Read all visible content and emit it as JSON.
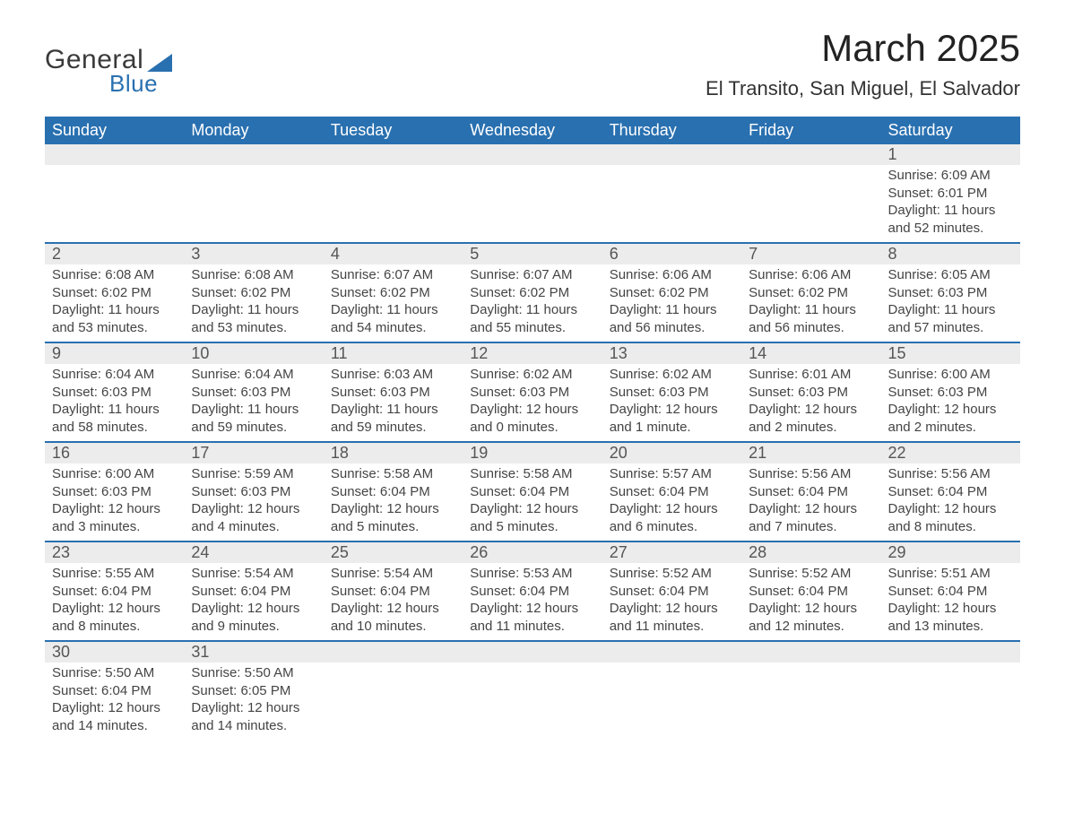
{
  "logo": {
    "general": "General",
    "blue": "Blue"
  },
  "title": "March 2025",
  "subtitle": "El Transito, San Miguel, El Salvador",
  "calendar": {
    "header_bg": "#2970b0",
    "header_fg": "#ffffff",
    "daynum_bg": "#ececec",
    "row_border": "#2970b0",
    "weekdays": [
      "Sunday",
      "Monday",
      "Tuesday",
      "Wednesday",
      "Thursday",
      "Friday",
      "Saturday"
    ],
    "weeks": [
      [
        null,
        null,
        null,
        null,
        null,
        null,
        {
          "n": "1",
          "sunrise": "Sunrise: 6:09 AM",
          "sunset": "Sunset: 6:01 PM",
          "day1": "Daylight: 11 hours",
          "day2": "and 52 minutes."
        }
      ],
      [
        {
          "n": "2",
          "sunrise": "Sunrise: 6:08 AM",
          "sunset": "Sunset: 6:02 PM",
          "day1": "Daylight: 11 hours",
          "day2": "and 53 minutes."
        },
        {
          "n": "3",
          "sunrise": "Sunrise: 6:08 AM",
          "sunset": "Sunset: 6:02 PM",
          "day1": "Daylight: 11 hours",
          "day2": "and 53 minutes."
        },
        {
          "n": "4",
          "sunrise": "Sunrise: 6:07 AM",
          "sunset": "Sunset: 6:02 PM",
          "day1": "Daylight: 11 hours",
          "day2": "and 54 minutes."
        },
        {
          "n": "5",
          "sunrise": "Sunrise: 6:07 AM",
          "sunset": "Sunset: 6:02 PM",
          "day1": "Daylight: 11 hours",
          "day2": "and 55 minutes."
        },
        {
          "n": "6",
          "sunrise": "Sunrise: 6:06 AM",
          "sunset": "Sunset: 6:02 PM",
          "day1": "Daylight: 11 hours",
          "day2": "and 56 minutes."
        },
        {
          "n": "7",
          "sunrise": "Sunrise: 6:06 AM",
          "sunset": "Sunset: 6:02 PM",
          "day1": "Daylight: 11 hours",
          "day2": "and 56 minutes."
        },
        {
          "n": "8",
          "sunrise": "Sunrise: 6:05 AM",
          "sunset": "Sunset: 6:03 PM",
          "day1": "Daylight: 11 hours",
          "day2": "and 57 minutes."
        }
      ],
      [
        {
          "n": "9",
          "sunrise": "Sunrise: 6:04 AM",
          "sunset": "Sunset: 6:03 PM",
          "day1": "Daylight: 11 hours",
          "day2": "and 58 minutes."
        },
        {
          "n": "10",
          "sunrise": "Sunrise: 6:04 AM",
          "sunset": "Sunset: 6:03 PM",
          "day1": "Daylight: 11 hours",
          "day2": "and 59 minutes."
        },
        {
          "n": "11",
          "sunrise": "Sunrise: 6:03 AM",
          "sunset": "Sunset: 6:03 PM",
          "day1": "Daylight: 11 hours",
          "day2": "and 59 minutes."
        },
        {
          "n": "12",
          "sunrise": "Sunrise: 6:02 AM",
          "sunset": "Sunset: 6:03 PM",
          "day1": "Daylight: 12 hours",
          "day2": "and 0 minutes."
        },
        {
          "n": "13",
          "sunrise": "Sunrise: 6:02 AM",
          "sunset": "Sunset: 6:03 PM",
          "day1": "Daylight: 12 hours",
          "day2": "and 1 minute."
        },
        {
          "n": "14",
          "sunrise": "Sunrise: 6:01 AM",
          "sunset": "Sunset: 6:03 PM",
          "day1": "Daylight: 12 hours",
          "day2": "and 2 minutes."
        },
        {
          "n": "15",
          "sunrise": "Sunrise: 6:00 AM",
          "sunset": "Sunset: 6:03 PM",
          "day1": "Daylight: 12 hours",
          "day2": "and 2 minutes."
        }
      ],
      [
        {
          "n": "16",
          "sunrise": "Sunrise: 6:00 AM",
          "sunset": "Sunset: 6:03 PM",
          "day1": "Daylight: 12 hours",
          "day2": "and 3 minutes."
        },
        {
          "n": "17",
          "sunrise": "Sunrise: 5:59 AM",
          "sunset": "Sunset: 6:03 PM",
          "day1": "Daylight: 12 hours",
          "day2": "and 4 minutes."
        },
        {
          "n": "18",
          "sunrise": "Sunrise: 5:58 AM",
          "sunset": "Sunset: 6:04 PM",
          "day1": "Daylight: 12 hours",
          "day2": "and 5 minutes."
        },
        {
          "n": "19",
          "sunrise": "Sunrise: 5:58 AM",
          "sunset": "Sunset: 6:04 PM",
          "day1": "Daylight: 12 hours",
          "day2": "and 5 minutes."
        },
        {
          "n": "20",
          "sunrise": "Sunrise: 5:57 AM",
          "sunset": "Sunset: 6:04 PM",
          "day1": "Daylight: 12 hours",
          "day2": "and 6 minutes."
        },
        {
          "n": "21",
          "sunrise": "Sunrise: 5:56 AM",
          "sunset": "Sunset: 6:04 PM",
          "day1": "Daylight: 12 hours",
          "day2": "and 7 minutes."
        },
        {
          "n": "22",
          "sunrise": "Sunrise: 5:56 AM",
          "sunset": "Sunset: 6:04 PM",
          "day1": "Daylight: 12 hours",
          "day2": "and 8 minutes."
        }
      ],
      [
        {
          "n": "23",
          "sunrise": "Sunrise: 5:55 AM",
          "sunset": "Sunset: 6:04 PM",
          "day1": "Daylight: 12 hours",
          "day2": "and 8 minutes."
        },
        {
          "n": "24",
          "sunrise": "Sunrise: 5:54 AM",
          "sunset": "Sunset: 6:04 PM",
          "day1": "Daylight: 12 hours",
          "day2": "and 9 minutes."
        },
        {
          "n": "25",
          "sunrise": "Sunrise: 5:54 AM",
          "sunset": "Sunset: 6:04 PM",
          "day1": "Daylight: 12 hours",
          "day2": "and 10 minutes."
        },
        {
          "n": "26",
          "sunrise": "Sunrise: 5:53 AM",
          "sunset": "Sunset: 6:04 PM",
          "day1": "Daylight: 12 hours",
          "day2": "and 11 minutes."
        },
        {
          "n": "27",
          "sunrise": "Sunrise: 5:52 AM",
          "sunset": "Sunset: 6:04 PM",
          "day1": "Daylight: 12 hours",
          "day2": "and 11 minutes."
        },
        {
          "n": "28",
          "sunrise": "Sunrise: 5:52 AM",
          "sunset": "Sunset: 6:04 PM",
          "day1": "Daylight: 12 hours",
          "day2": "and 12 minutes."
        },
        {
          "n": "29",
          "sunrise": "Sunrise: 5:51 AM",
          "sunset": "Sunset: 6:04 PM",
          "day1": "Daylight: 12 hours",
          "day2": "and 13 minutes."
        }
      ],
      [
        {
          "n": "30",
          "sunrise": "Sunrise: 5:50 AM",
          "sunset": "Sunset: 6:04 PM",
          "day1": "Daylight: 12 hours",
          "day2": "and 14 minutes."
        },
        {
          "n": "31",
          "sunrise": "Sunrise: 5:50 AM",
          "sunset": "Sunset: 6:05 PM",
          "day1": "Daylight: 12 hours",
          "day2": "and 14 minutes."
        },
        null,
        null,
        null,
        null,
        null
      ]
    ]
  }
}
